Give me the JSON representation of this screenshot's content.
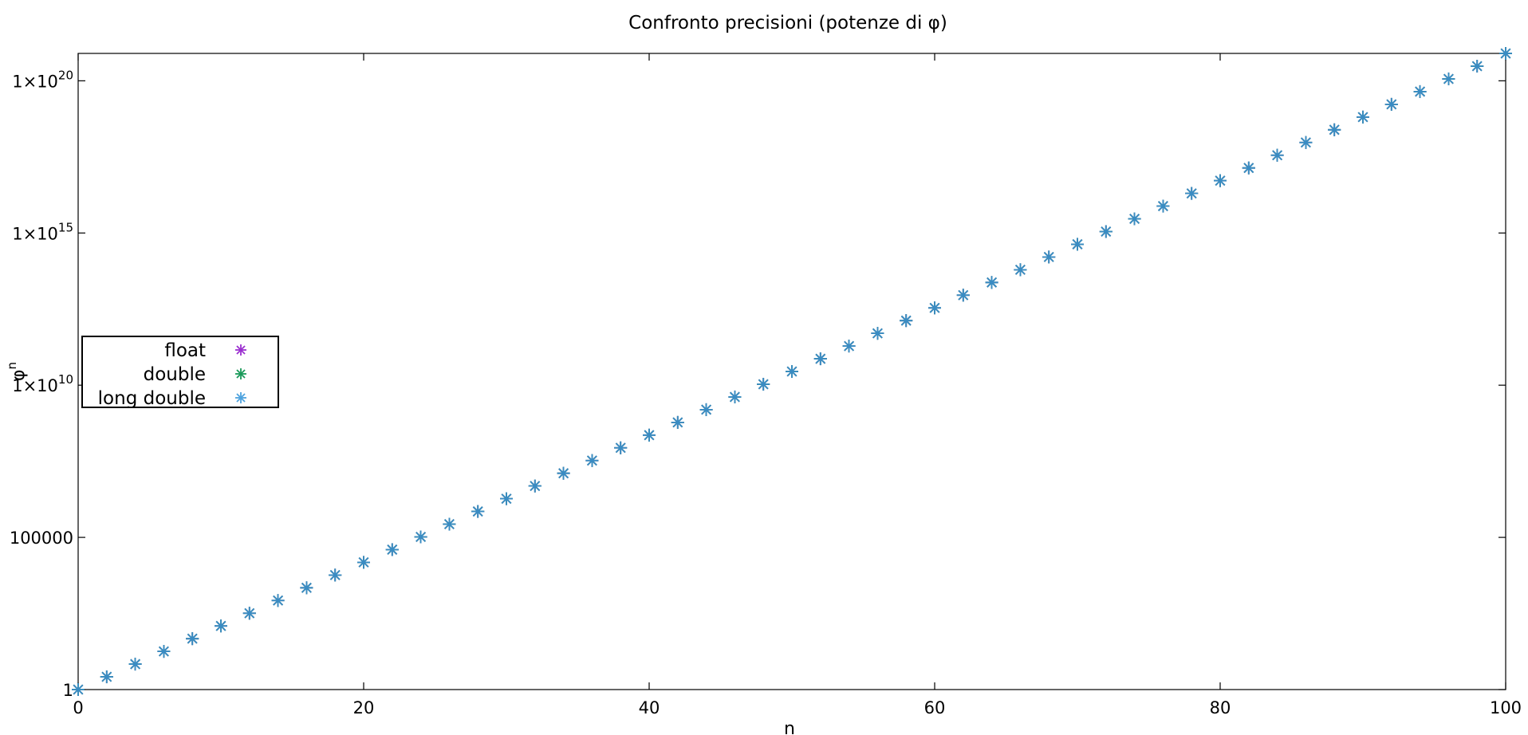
{
  "chart_data": {
    "type": "scatter",
    "title": "Confronto precisioni (potenze di φ)",
    "xlabel": "n",
    "ylabel": "φ",
    "ylabel_sup": "n",
    "xlim": [
      0,
      100
    ],
    "ylim_log10": [
      0,
      20.9
    ],
    "y_scale": "log",
    "grid": false,
    "legend_position": "left",
    "x_ticks": [
      {
        "value": 0,
        "label": "0"
      },
      {
        "value": 20,
        "label": "20"
      },
      {
        "value": 40,
        "label": "40"
      },
      {
        "value": 60,
        "label": "60"
      },
      {
        "value": 80,
        "label": "80"
      },
      {
        "value": 100,
        "label": "100"
      }
    ],
    "y_ticks": [
      {
        "log10": 0,
        "mantissa": "1",
        "sup": ""
      },
      {
        "log10": 5,
        "mantissa": "100000",
        "sup": ""
      },
      {
        "log10": 10,
        "mantissa": "1×10",
        "sup": "10"
      },
      {
        "log10": 15,
        "mantissa": "1×10",
        "sup": "15"
      },
      {
        "log10": 20,
        "mantissa": "1×10",
        "sup": "20"
      }
    ],
    "phi": 1.6180339887,
    "x": [
      0,
      2,
      4,
      6,
      8,
      10,
      12,
      14,
      16,
      18,
      20,
      22,
      24,
      26,
      28,
      30,
      32,
      34,
      36,
      38,
      40,
      42,
      44,
      46,
      48,
      50,
      52,
      54,
      56,
      58,
      60,
      62,
      64,
      66,
      68,
      70,
      72,
      74,
      76,
      78,
      80,
      82,
      84,
      86,
      88,
      90,
      92,
      94,
      96,
      98,
      100
    ],
    "series": [
      {
        "name": "float",
        "color": "#9b30d0"
      },
      {
        "name": "double",
        "color": "#1a9a5a"
      },
      {
        "name": "long double",
        "color": "#4fa3de"
      }
    ],
    "overlay_color": "#3a8cc4"
  }
}
